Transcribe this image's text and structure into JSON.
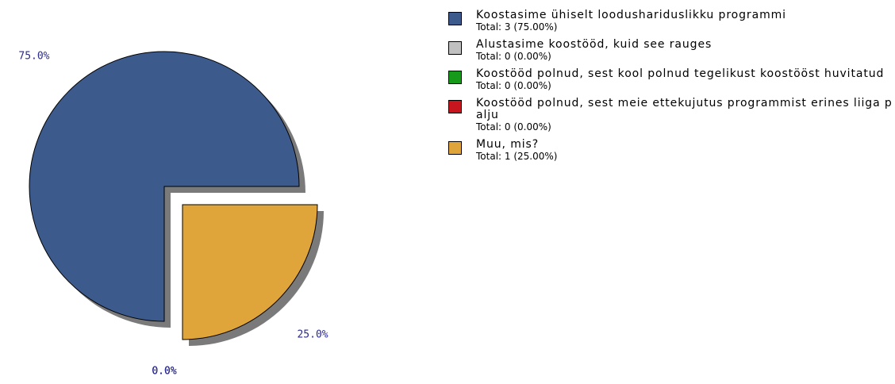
{
  "chart_data": {
    "type": "pie",
    "categories": [
      "Koostasime ühiselt loodushariduslikku programmi",
      "Alustasime koostööd, kuid see rauges",
      "Koostööd polnud, sest kool polnud tegelikust koostööst huvitatud",
      "Koostööd polnud, sest meie ettekujutus programmist erines liiga palju",
      "Muu, mis?"
    ],
    "values": [
      3,
      0,
      0,
      0,
      1
    ],
    "value_labels": [
      "75.0%",
      "0.0%",
      "0.0%",
      "0.0%",
      "25.0%"
    ],
    "totals": [
      "Total: 3 (75.00%)",
      "Total: 0 (0.00%)",
      "Total: 0 (0.00%)",
      "Total: 0 (0.00%)",
      "Total: 1 (25.00%)"
    ],
    "colors": [
      "#3d5a8c",
      "#c0c0c0",
      "#17991a",
      "#c8161e",
      "#e0a53a"
    ]
  }
}
